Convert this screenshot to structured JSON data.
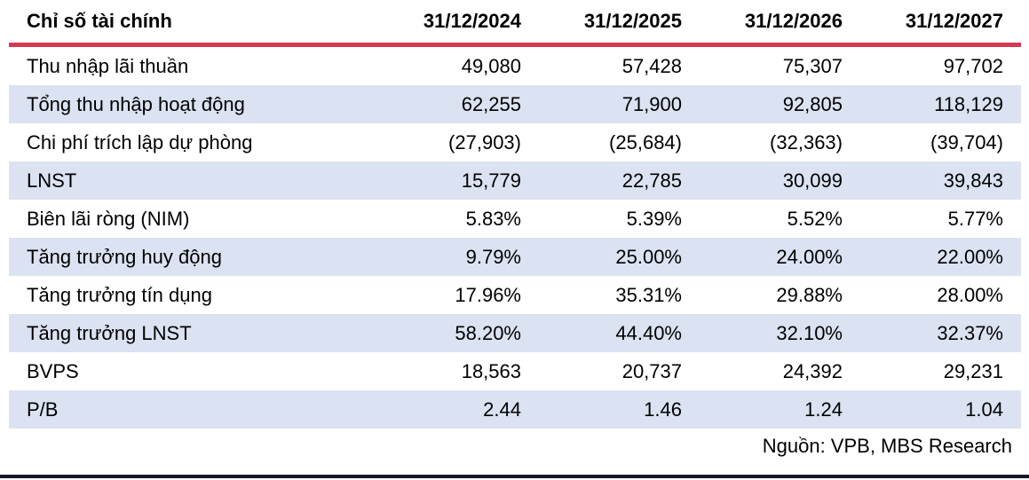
{
  "table": {
    "header": {
      "label": "Chỉ số tài chính",
      "columns": [
        "31/12/2024",
        "31/12/2025",
        "31/12/2026",
        "31/12/2027"
      ]
    },
    "rows": [
      {
        "label": "Thu nhập lãi thuần",
        "values": [
          "49,080",
          "57,428",
          "75,307",
          "97,702"
        ]
      },
      {
        "label": "Tổng thu nhập hoạt động",
        "values": [
          "62,255",
          "71,900",
          "92,805",
          "118,129"
        ]
      },
      {
        "label": "Chi phí trích lập dự phòng",
        "values": [
          "(27,903)",
          "(25,684)",
          "(32,363)",
          "(39,704)"
        ]
      },
      {
        "label": "LNST",
        "values": [
          "15,779",
          "22,785",
          "30,099",
          "39,843"
        ]
      },
      {
        "label": "Biên lãi ròng (NIM)",
        "values": [
          "5.83%",
          "5.39%",
          "5.52%",
          "5.77%"
        ]
      },
      {
        "label": "Tăng trưởng huy động",
        "values": [
          "9.79%",
          "25.00%",
          "24.00%",
          "22.00%"
        ]
      },
      {
        "label": "Tăng trưởng tín dụng",
        "values": [
          "17.96%",
          "35.31%",
          "29.88%",
          "28.00%"
        ]
      },
      {
        "label": "Tăng trưởng LNST",
        "values": [
          "58.20%",
          "44.40%",
          "32.10%",
          "32.37%"
        ]
      },
      {
        "label": "BVPS",
        "values": [
          "18,563",
          "20,737",
          "24,392",
          "29,231"
        ]
      },
      {
        "label": "P/B",
        "values": [
          "2.44",
          "1.46",
          "1.24",
          "1.04"
        ]
      }
    ],
    "source": "Nguồn: VPB, MBS Research"
  },
  "colors": {
    "accent_red": "#d63852",
    "row_alt": "#dbe2f1",
    "bottom_bar": "#14182b"
  }
}
